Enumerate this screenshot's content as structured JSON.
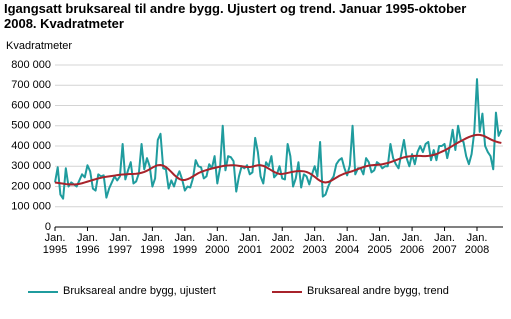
{
  "chart_data": {
    "type": "line",
    "title": "Igangsatt bruksareal til andre bygg. Ujustert og trend. Januar 1995-oktober 2008. Kvadratmeter",
    "y_label": "Kvadratmeter",
    "categories": [
      "Jan.\n1995",
      null,
      null,
      null,
      null,
      null,
      null,
      null,
      null,
      null,
      null,
      null,
      "Jan.\n1996",
      null,
      null,
      null,
      null,
      null,
      null,
      null,
      null,
      null,
      null,
      null,
      "Jan.\n1997",
      null,
      null,
      null,
      null,
      null,
      null,
      null,
      null,
      null,
      null,
      null,
      "Jan.\n1998",
      null,
      null,
      null,
      null,
      null,
      null,
      null,
      null,
      null,
      null,
      null,
      "Jan.\n1999",
      null,
      null,
      null,
      null,
      null,
      null,
      null,
      null,
      null,
      null,
      null,
      "Jan.\n2000",
      null,
      null,
      null,
      null,
      null,
      null,
      null,
      null,
      null,
      null,
      null,
      "Jan.\n2001",
      null,
      null,
      null,
      null,
      null,
      null,
      null,
      null,
      null,
      null,
      null,
      "Jan.\n2002",
      null,
      null,
      null,
      null,
      null,
      null,
      null,
      null,
      null,
      null,
      null,
      "Jan.\n2003",
      null,
      null,
      null,
      null,
      null,
      null,
      null,
      null,
      null,
      null,
      null,
      "Jan.\n2004",
      null,
      null,
      null,
      null,
      null,
      null,
      null,
      null,
      null,
      null,
      null,
      "Jan.\n2005",
      null,
      null,
      null,
      null,
      null,
      null,
      null,
      null,
      null,
      null,
      null,
      "Jan.\n2006",
      null,
      null,
      null,
      null,
      null,
      null,
      null,
      null,
      null,
      null,
      null,
      "Jan.\n2007",
      null,
      null,
      null,
      null,
      null,
      null,
      null,
      null,
      null,
      null,
      null,
      "Jan.\n2008",
      null,
      null,
      null,
      null,
      null,
      null,
      null,
      null,
      null
    ],
    "series": [
      {
        "name": "Bruksareal andre bygg, ujustert",
        "color": "#1f9c9e",
        "values": [
          220000,
          295000,
          160000,
          140000,
          290000,
          200000,
          220000,
          210000,
          200000,
          230000,
          260000,
          245000,
          305000,
          275000,
          190000,
          180000,
          260000,
          250000,
          255000,
          145000,
          190000,
          220000,
          250000,
          230000,
          250000,
          410000,
          235000,
          280000,
          320000,
          215000,
          225000,
          265000,
          410000,
          285000,
          340000,
          300000,
          200000,
          240000,
          430000,
          460000,
          290000,
          285000,
          190000,
          230000,
          200000,
          245000,
          275000,
          235000,
          180000,
          200000,
          195000,
          240000,
          330000,
          300000,
          295000,
          240000,
          250000,
          310000,
          290000,
          350000,
          215000,
          290000,
          500000,
          280000,
          350000,
          345000,
          325000,
          175000,
          250000,
          300000,
          290000,
          305000,
          260000,
          270000,
          440000,
          370000,
          250000,
          215000,
          320000,
          300000,
          350000,
          245000,
          260000,
          300000,
          240000,
          235000,
          410000,
          350000,
          200000,
          240000,
          320000,
          195000,
          260000,
          250000,
          210000,
          260000,
          300000,
          250000,
          420000,
          150000,
          160000,
          200000,
          230000,
          250000,
          310000,
          330000,
          340000,
          290000,
          255000,
          305000,
          500000,
          260000,
          290000,
          290000,
          260000,
          340000,
          320000,
          270000,
          280000,
          320000,
          310000,
          290000,
          300000,
          300000,
          410000,
          340000,
          310000,
          290000,
          360000,
          430000,
          340000,
          300000,
          360000,
          310000,
          370000,
          400000,
          370000,
          410000,
          420000,
          330000,
          380000,
          330000,
          400000,
          400000,
          410000,
          340000,
          400000,
          480000,
          380000,
          500000,
          430000,
          420000,
          350000,
          310000,
          360000,
          470000,
          730000,
          470000,
          560000,
          400000,
          370000,
          350000,
          285000,
          565000,
          450000,
          480000
        ]
      },
      {
        "name": "Bruksareal andre bygg, trend",
        "color": "#a8232b",
        "values": [
          220000,
          218000,
          216000,
          214000,
          212000,
          211000,
          210000,
          210000,
          211000,
          213000,
          216000,
          220000,
          224000,
          228000,
          232000,
          236000,
          240000,
          243000,
          246000,
          248000,
          250000,
          252000,
          254000,
          256000,
          258000,
          259000,
          260000,
          261000,
          262000,
          262000,
          263000,
          265000,
          268000,
          272000,
          278000,
          285000,
          293000,
          300000,
          305000,
          306000,
          303000,
          296000,
          285000,
          272000,
          258000,
          246000,
          237000,
          232000,
          232000,
          236000,
          242000,
          250000,
          258000,
          266000,
          272000,
          277000,
          281000,
          285000,
          289000,
          292000,
          295000,
          298000,
          301000,
          303000,
          304000,
          305000,
          305000,
          304000,
          302000,
          300000,
          298000,
          296000,
          296000,
          298000,
          302000,
          305000,
          305000,
          302000,
          296000,
          288000,
          280000,
          272000,
          266000,
          262000,
          262000,
          264000,
          267000,
          270000,
          273000,
          275000,
          276000,
          276000,
          275000,
          272000,
          266000,
          258000,
          248000,
          237000,
          228000,
          222000,
          220000,
          222000,
          228000,
          236000,
          244000,
          252000,
          258000,
          264000,
          268000,
          272000,
          276000,
          281000,
          286000,
          291000,
          296000,
          300000,
          303000,
          305000,
          306000,
          307000,
          308000,
          310000,
          313000,
          316000,
          320000,
          325000,
          330000,
          335000,
          340000,
          344000,
          347000,
          349000,
          350000,
          351000,
          351000,
          351000,
          350000,
          350000,
          351000,
          353000,
          356000,
          360000,
          366000,
          372000,
          378000,
          385000,
          393000,
          401000,
          409000,
          417000,
          424000,
          431000,
          438000,
          444000,
          449000,
          453000,
          455000,
          455000,
          452000,
          447000,
          440000,
          433000,
          427000,
          422000,
          418000,
          415000
        ]
      }
    ],
    "ylim": [
      0,
      800000
    ],
    "yticks": [
      {
        "value": 0,
        "label": "0"
      },
      {
        "value": 100000,
        "label": "100 000"
      },
      {
        "value": 200000,
        "label": "200 000"
      },
      {
        "value": 300000,
        "label": "300 000"
      },
      {
        "value": 400000,
        "label": "400 000"
      },
      {
        "value": 500000,
        "label": "500 000"
      },
      {
        "value": 600000,
        "label": "600 000"
      },
      {
        "value": 700000,
        "label": "700 000"
      },
      {
        "value": 800000,
        "label": "800 000"
      }
    ],
    "grid": true
  }
}
